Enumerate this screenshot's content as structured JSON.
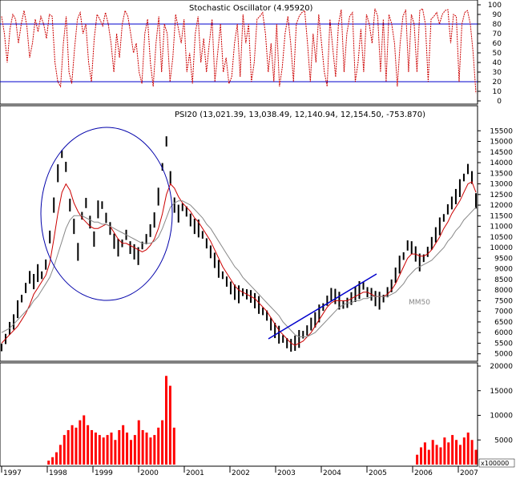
{
  "chart_data": [
    {
      "type": "line",
      "title": "Stochastic Oscillator (4.95920)",
      "yaxis_ticks": [
        0,
        10,
        20,
        30,
        40,
        50,
        60,
        70,
        80,
        90,
        100
      ],
      "ylim": [
        0,
        100
      ],
      "reference_lines": [
        80,
        20
      ],
      "series": [
        {
          "name": "",
          "color": "#cc0000",
          "style": "dashed",
          "values": [
            88,
            70,
            40,
            75,
            90,
            85,
            60,
            80,
            94,
            78,
            45,
            60,
            85,
            72,
            88,
            80,
            65,
            90,
            88,
            40,
            20,
            15,
            60,
            88,
            30,
            18,
            55,
            85,
            92,
            70,
            80,
            40,
            20,
            65,
            90,
            85,
            78,
            92,
            80,
            60,
            30,
            70,
            45,
            80,
            94,
            88,
            70,
            50,
            60,
            30,
            18,
            70,
            85,
            40,
            15,
            60,
            88,
            30,
            80,
            70,
            20,
            45,
            90,
            75,
            60,
            85,
            30,
            50,
            18,
            70,
            88,
            40,
            65,
            30,
            60,
            85,
            20,
            50,
            80,
            30,
            45,
            18,
            25,
            60,
            80,
            25,
            90,
            60,
            80,
            20,
            40,
            85,
            88,
            92,
            70,
            30,
            60,
            20,
            80,
            15,
            35,
            70,
            88,
            60,
            20,
            80,
            88,
            92,
            94,
            60,
            20,
            70,
            40,
            90,
            60,
            30,
            15,
            85,
            55,
            25,
            80,
            95,
            30,
            70,
            88,
            92,
            20,
            40,
            75,
            30,
            90,
            80,
            60,
            96,
            88,
            30,
            85,
            20,
            90,
            80,
            60,
            15,
            60,
            88,
            95,
            30,
            90,
            80,
            30,
            94,
            96,
            80,
            20,
            85,
            88,
            92,
            80,
            90,
            94,
            95,
            60,
            90,
            88,
            20,
            80,
            92,
            94,
            80,
            50,
            8
          ]
        }
      ],
      "xaxis_labels": []
    },
    {
      "type": "line",
      "title": "PSI20 (13,021.39, 13,038.49, 12,140.94, 12,154.50, -753.870)",
      "yaxis_ticks": [
        5000,
        5500,
        6000,
        6500,
        7000,
        7500,
        8000,
        8500,
        9000,
        9500,
        10000,
        10500,
        11000,
        11500,
        12000,
        12500,
        13000,
        13500,
        14000,
        14500,
        15000,
        15500
      ],
      "ylim": [
        4800,
        16000
      ],
      "annotations": [
        "MM50"
      ],
      "series": [
        {
          "name": "",
          "color": "#000000",
          "style": "price",
          "values": [
            5300,
            5700,
            6200,
            6500,
            7100,
            7600,
            8100,
            8600,
            8400,
            8800,
            8700,
            9200,
            10500,
            12000,
            13500,
            14400,
            13800,
            12000,
            11000,
            9800,
            11500,
            12100,
            11200,
            10400,
            11800,
            12000,
            11400,
            10900,
            10300,
            10000,
            10200,
            10600,
            10000,
            9800,
            9600,
            10100,
            10400,
            10800,
            11300,
            12400,
            13800,
            15000,
            13300,
            12000,
            11600,
            11900,
            11700,
            11300,
            11000,
            10900,
            10600,
            10200,
            9800,
            9400,
            9000,
            8700,
            8400,
            8100,
            7900,
            7800,
            7900,
            7800,
            7700,
            7500,
            7300,
            7000,
            6800,
            6400,
            6100,
            5900,
            5700,
            5500,
            5400,
            5500,
            5700,
            5900,
            6100,
            6400,
            6600,
            6900,
            7200,
            7500,
            7800,
            7700,
            7500,
            7300,
            7400,
            7600,
            7800,
            8000,
            8200,
            7900,
            7800,
            7600,
            7500,
            7600,
            7900,
            8200,
            8700,
            9200,
            9600,
            10100,
            10000,
            9700,
            9300,
            9500,
            9800,
            10200,
            10600,
            11000,
            11400,
            11800,
            12100,
            12400,
            12800,
            13300,
            13700,
            13300,
            12200
          ]
        },
        {
          "name": "",
          "color": "#cc0000",
          "style": "ma",
          "values": [
            5500,
            5700,
            5900,
            6100,
            6300,
            6600,
            6900,
            7300,
            7800,
            8100,
            8400,
            8700,
            9300,
            10400,
            11600,
            12600,
            13000,
            12700,
            12100,
            11700,
            11400,
            11200,
            11000,
            10900,
            10900,
            11000,
            11100,
            11000,
            10700,
            10400,
            10200,
            10200,
            10100,
            10000,
            9900,
            9800,
            9900,
            10100,
            10400,
            10900,
            11600,
            12500,
            13000,
            12800,
            12400,
            12100,
            11900,
            11700,
            11400,
            11200,
            10900,
            10600,
            10300,
            9900,
            9500,
            9100,
            8800,
            8500,
            8200,
            8000,
            7900,
            7800,
            7700,
            7600,
            7400,
            7200,
            7000,
            6700,
            6400,
            6100,
            5900,
            5700,
            5500,
            5400,
            5500,
            5600,
            5800,
            6000,
            6300,
            6600,
            6900,
            7200,
            7400,
            7500,
            7500,
            7500,
            7500,
            7600,
            7700,
            7800,
            7900,
            7900,
            7800,
            7700,
            7700,
            7700,
            7800,
            8000,
            8300,
            8700,
            9100,
            9500,
            9700,
            9700,
            9600,
            9600,
            9700,
            9900,
            10200,
            10500,
            10900,
            11200,
            11600,
            11900,
            12200,
            12600,
            13000,
            13100,
            12600
          ]
        },
        {
          "name": "",
          "color": "#888888",
          "style": "ma",
          "values": [
            6000,
            6100,
            6200,
            6400,
            6600,
            6800,
            7000,
            7200,
            7500,
            7700,
            8000,
            8300,
            8600,
            9100,
            9700,
            10300,
            10900,
            11300,
            11500,
            11500,
            11500,
            11400,
            11300,
            11200,
            11200,
            11100,
            11100,
            11000,
            10900,
            10800,
            10700,
            10600,
            10500,
            10400,
            10300,
            10200,
            10200,
            10200,
            10300,
            10500,
            10900,
            11400,
            11900,
            12100,
            12200,
            12200,
            12100,
            12000,
            11800,
            11600,
            11400,
            11100,
            10900,
            10600,
            10300,
            10000,
            9700,
            9400,
            9100,
            8900,
            8600,
            8400,
            8200,
            8000,
            7800,
            7600,
            7400,
            7200,
            7000,
            6800,
            6500,
            6300,
            6100,
            5900,
            5800,
            5800,
            5800,
            5900,
            6000,
            6200,
            6400,
            6600,
            6800,
            7000,
            7200,
            7300,
            7400,
            7400,
            7500,
            7500,
            7600,
            7600,
            7700,
            7700,
            7700,
            7700,
            7700,
            7800,
            7900,
            8100,
            8300,
            8600,
            8800,
            9000,
            9100,
            9200,
            9300,
            9400,
            9600,
            9800,
            10000,
            10300,
            10500,
            10800,
            11000,
            11300,
            11500,
            11700,
            11900
          ]
        }
      ]
    },
    {
      "type": "bar",
      "title": "",
      "yaxis_ticks": [
        5000,
        10000,
        15000,
        20000
      ],
      "ylim": [
        0,
        20000
      ],
      "unit_label": "x100000",
      "color": "#ff0000",
      "values": [
        0,
        0,
        0,
        0,
        0,
        0,
        0,
        0,
        0,
        0,
        0,
        0,
        800,
        1500,
        2500,
        4000,
        6000,
        7000,
        8000,
        7500,
        9000,
        10000,
        8000,
        7000,
        6500,
        6000,
        5500,
        6000,
        6500,
        5000,
        7000,
        8000,
        6500,
        5000,
        6000,
        9000,
        7000,
        6500,
        5500,
        6000,
        7500,
        9000,
        18000,
        16000,
        7500,
        0,
        0,
        0,
        0,
        0,
        0,
        0,
        0,
        0,
        0,
        0,
        0,
        0,
        0,
        0,
        0,
        0,
        0,
        0,
        0,
        0,
        0,
        0,
        0,
        0,
        0,
        0,
        0,
        0,
        0,
        0,
        0,
        0,
        0,
        0,
        0,
        0,
        0,
        0,
        0,
        0,
        0,
        0,
        0,
        0,
        0,
        0,
        0,
        0,
        0,
        0,
        0,
        0,
        0,
        0,
        0,
        0,
        0,
        0,
        0,
        0,
        2000,
        3500,
        4500,
        3000,
        5000,
        4000,
        3500,
        5500,
        4500,
        6000,
        5000,
        4000,
        5500,
        6500,
        5000,
        3000
      ]
    }
  ],
  "x_axis": {
    "labels": [
      "1997",
      "1998",
      "1999",
      "2000",
      "2001",
      "2002",
      "2003",
      "2004",
      "2005",
      "2006",
      "2007"
    ]
  }
}
